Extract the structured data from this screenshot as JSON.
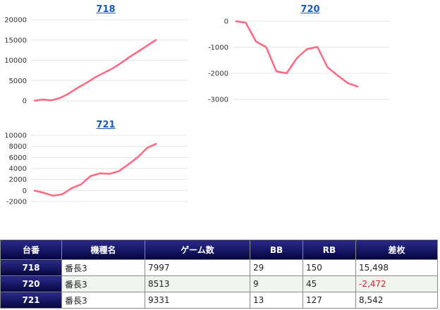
{
  "charts": [
    {
      "title": "718",
      "type": "line",
      "ylim": [
        0,
        20000
      ],
      "yticks": [
        0,
        5000,
        10000,
        15000,
        20000
      ],
      "values": [
        0,
        300,
        100,
        700,
        1800,
        3200,
        4400,
        5800,
        6900,
        8000,
        9400,
        10900,
        12300,
        13700,
        15100
      ]
    },
    {
      "title": "720",
      "type": "line",
      "ylim": [
        -3000,
        0
      ],
      "yticks": [
        0,
        -1000,
        -2000,
        -3000
      ],
      "values": [
        0,
        -60,
        -780,
        -1000,
        -1930,
        -2000,
        -1420,
        -1070,
        -990,
        -1770,
        -2090,
        -2380,
        -2520
      ]
    },
    {
      "title": "721",
      "type": "line",
      "ylim": [
        -2000,
        10000
      ],
      "yticks": [
        10000,
        8000,
        6000,
        4000,
        2000,
        0,
        -2000
      ],
      "values": [
        0,
        -400,
        -950,
        -700,
        400,
        1100,
        2600,
        3100,
        3000,
        3500,
        4700,
        6000,
        7700,
        8500
      ]
    }
  ],
  "chart_data": [
    {
      "type": "line",
      "title": "718",
      "xlabel": "",
      "ylabel": "",
      "ylim": [
        0,
        20000
      ],
      "x": [
        1,
        2,
        3,
        4,
        5,
        6,
        7,
        8,
        9,
        10,
        11,
        12,
        13,
        14,
        15
      ],
      "values": [
        0,
        300,
        100,
        700,
        1800,
        3200,
        4400,
        5800,
        6900,
        8000,
        9400,
        10900,
        12300,
        13700,
        15100
      ]
    },
    {
      "type": "line",
      "title": "720",
      "xlabel": "",
      "ylabel": "",
      "ylim": [
        -3000,
        0
      ],
      "x": [
        1,
        2,
        3,
        4,
        5,
        6,
        7,
        8,
        9,
        10,
        11,
        12,
        13
      ],
      "values": [
        0,
        -60,
        -780,
        -1000,
        -1930,
        -2000,
        -1420,
        -1070,
        -990,
        -1770,
        -2090,
        -2380,
        -2520
      ]
    },
    {
      "type": "line",
      "title": "721",
      "xlabel": "",
      "ylabel": "",
      "ylim": [
        -2000,
        10000
      ],
      "x": [
        1,
        2,
        3,
        4,
        5,
        6,
        7,
        8,
        9,
        10,
        11,
        12,
        13,
        14
      ],
      "values": [
        0,
        -400,
        -950,
        -700,
        400,
        1100,
        2600,
        3100,
        3000,
        3500,
        4700,
        6000,
        7700,
        8500
      ]
    }
  ],
  "colors": {
    "line": "#ff6680",
    "grid": "#e3e3e3",
    "header_bg": "#0a0a5a",
    "negative": "#e0142a"
  },
  "table": {
    "headers": [
      "台番",
      "機種名",
      "ゲーム数",
      "BB",
      "RB",
      "差枚"
    ],
    "rows": [
      {
        "no": "718",
        "name": "番長3",
        "games": "7997",
        "bb": "29",
        "rb": "150",
        "diff": "15,498"
      },
      {
        "no": "720",
        "name": "番長3",
        "games": "8513",
        "bb": "9",
        "rb": "45",
        "diff": "-2,472"
      },
      {
        "no": "721",
        "name": "番長3",
        "games": "9331",
        "bb": "13",
        "rb": "127",
        "diff": "8,542"
      }
    ]
  }
}
